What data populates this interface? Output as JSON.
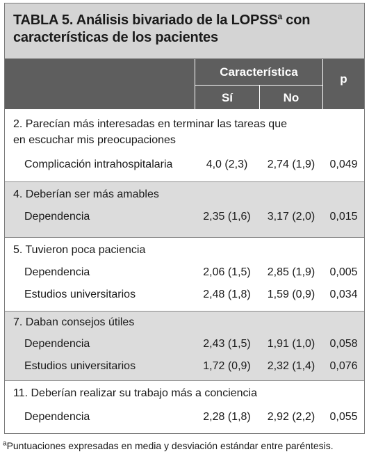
{
  "title": {
    "line1_pre": "TABLA 5. Análisis bivariado de la LOPSS",
    "line1_sup": "a",
    "line1_post": " con",
    "line2": "características de los pacientes"
  },
  "header": {
    "caracteristica": "Característica",
    "si": "Sí",
    "no": "No",
    "p": "p"
  },
  "groups": [
    {
      "question_lines": [
        "2. Parecían más interesadas en terminar las tareas que",
        "en escuchar mis preocupaciones"
      ],
      "rows": [
        {
          "label": "Complicación intrahospitalaria",
          "si": "4,0  (2,3)",
          "no": "2,74 (1,9)",
          "p": "0,049"
        }
      ]
    },
    {
      "question_lines": [
        "4. Deberían ser más amables"
      ],
      "rows": [
        {
          "label": "Dependencia",
          "si": "2,35 (1,6)",
          "no": "3,17 (2,0)",
          "p": "0,015"
        }
      ]
    },
    {
      "question_lines": [
        "5. Tuvieron poca paciencia"
      ],
      "rows": [
        {
          "label": "Dependencia",
          "si": "2,06 (1,5)",
          "no": "2,85 (1,9)",
          "p": "0,005"
        },
        {
          "label": "Estudios universitarios",
          "si": "2,48 (1,8)",
          "no": "1,59 (0,9)",
          "p": "0,034"
        }
      ]
    },
    {
      "question_lines": [
        "7. Daban consejos útiles"
      ],
      "rows": [
        {
          "label": "Dependencia",
          "si": "2,43 (1,5)",
          "no": "1,91 (1,0)",
          "p": "0,058"
        },
        {
          "label": "Estudios universitarios",
          "si": "1,72 (0,9)",
          "no": "2,32 (1,4)",
          "p": "0,076"
        }
      ]
    },
    {
      "question_lines": [
        "11. Deberían realizar su trabajo más a conciencia"
      ],
      "rows": [
        {
          "label": "Dependencia",
          "si": "2,28 (1,8)",
          "no": "2,92 (2,2)",
          "p": "0,055"
        }
      ]
    }
  ],
  "footnote": {
    "sup": "a",
    "text": "Puntuaciones expresadas en media y desviación estándar entre paréntesis."
  }
}
